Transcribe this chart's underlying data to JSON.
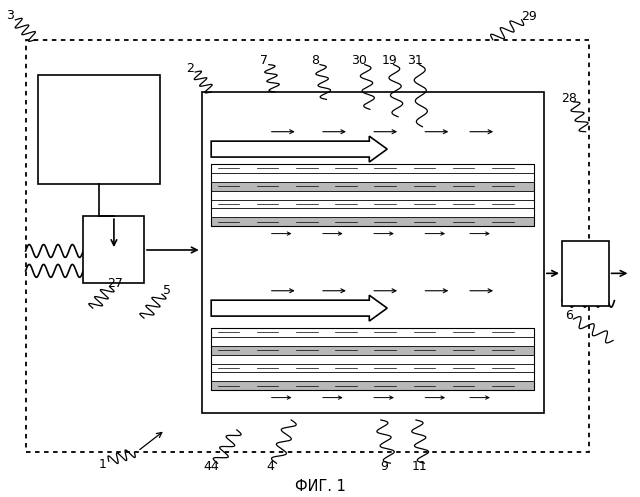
{
  "title": "ФИГ. 1",
  "bg_color": "#ffffff",
  "lw": 1.2
}
